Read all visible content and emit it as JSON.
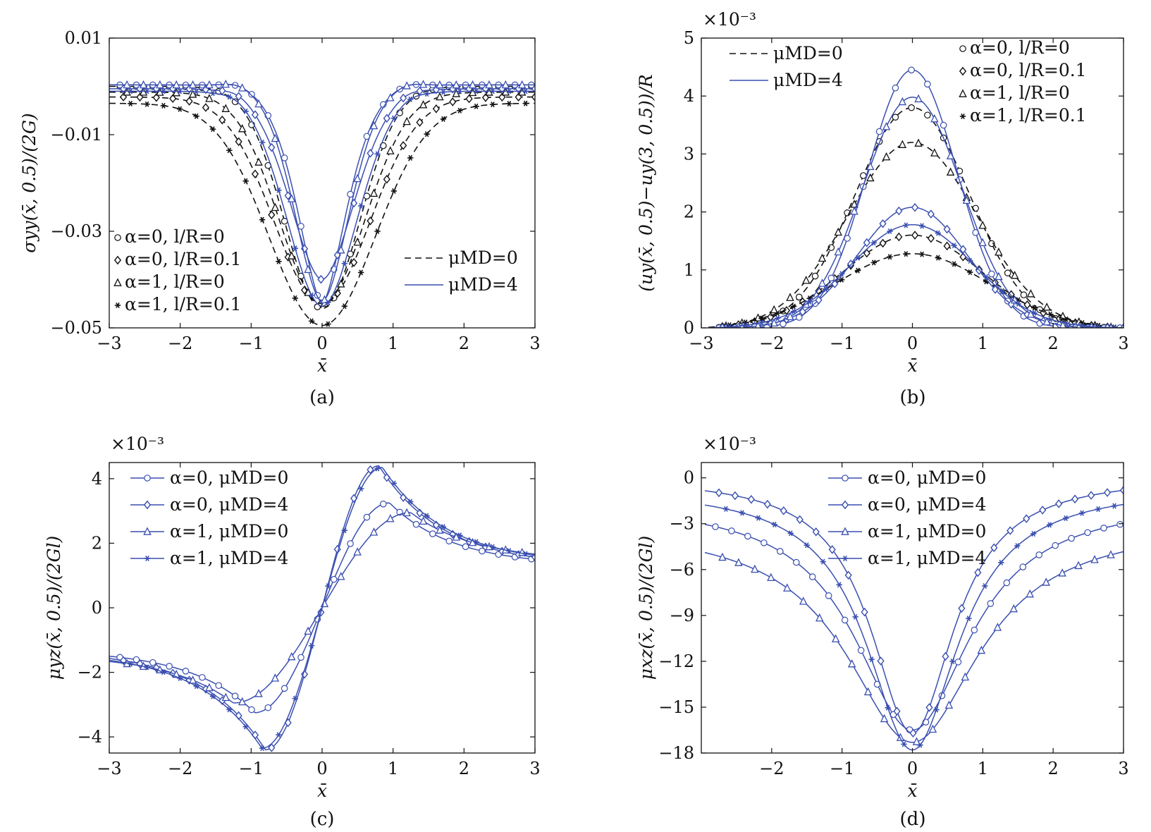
{
  "colors": {
    "blue": "#3a4fb0",
    "black": "#111111",
    "axis": "#111111"
  },
  "chart_data": [
    {
      "id": "a",
      "type": "line",
      "caption": "(a)",
      "xlabel": "x̄",
      "ylabel": "σyy(x̄, 0.5)/(2G)",
      "xlim": [
        -3,
        3
      ],
      "ylim": [
        -0.05,
        0.01
      ],
      "xticks": [
        -3,
        -2,
        -1,
        0,
        1,
        2,
        3
      ],
      "yticks": [
        -0.05,
        -0.03,
        -0.01,
        0.01
      ],
      "ytick_labels": [
        "−0.05",
        "−0.03",
        "−0.01",
        "0.01"
      ],
      "multiplier": "",
      "legend_markers": [
        {
          "marker": "circle",
          "label": "α=0, l/R=0"
        },
        {
          "marker": "diamond",
          "label": "α=0, l/R=0.1"
        },
        {
          "marker": "triangle",
          "label": "α=1, l/R=0"
        },
        {
          "marker": "star",
          "label": "α=1, l/R=0.1"
        }
      ],
      "legend_lines": [
        {
          "style": "dashed",
          "label": "μMD=0"
        },
        {
          "style": "solid",
          "label": "μMD=4"
        }
      ],
      "series": [
        {
          "color": "black",
          "style": "dashed",
          "marker": "circle",
          "peak": -0.046,
          "base": 0.0,
          "width": 0.75,
          "flat": 0,
          "p": 2.0
        },
        {
          "color": "black",
          "style": "dashed",
          "marker": "diamond",
          "peak": -0.045,
          "base": -0.0022,
          "width": 0.95,
          "flat": 0,
          "p": 2.0
        },
        {
          "color": "black",
          "style": "dashed",
          "marker": "triangle",
          "peak": -0.045,
          "base": -0.0012,
          "width": 0.85,
          "flat": 0,
          "p": 2.0
        },
        {
          "color": "black",
          "style": "dashed",
          "marker": "star",
          "peak": -0.0495,
          "base": -0.0035,
          "width": 1.05,
          "flat": 0,
          "p": 2.0
        },
        {
          "color": "blue",
          "style": "solid",
          "marker": "circle",
          "peak": -0.045,
          "base": 0.0003,
          "width": 0.5,
          "flat": 0.6,
          "p": 1.6
        },
        {
          "color": "blue",
          "style": "solid",
          "marker": "diamond",
          "peak": -0.04,
          "base": -0.0005,
          "width": 0.65,
          "flat": 0.35,
          "p": 1.8
        },
        {
          "color": "blue",
          "style": "solid",
          "marker": "triangle",
          "peak": -0.0445,
          "base": 0.0003,
          "width": 0.55,
          "flat": 0.3,
          "p": 1.8
        },
        {
          "color": "blue",
          "style": "solid",
          "marker": "star",
          "peak": -0.0455,
          "base": -0.001,
          "width": 0.7,
          "flat": 0.2,
          "p": 1.9
        }
      ]
    },
    {
      "id": "b",
      "type": "line",
      "caption": "(b)",
      "xlabel": "x̄",
      "ylabel": "(uy(x̄, 0.5)−uy(3, 0.5))/R",
      "xlim": [
        -3,
        3
      ],
      "ylim": [
        0,
        5
      ],
      "xticks": [
        -3,
        -2,
        -1,
        0,
        1,
        2,
        3
      ],
      "yticks": [
        0,
        1,
        2,
        3,
        4,
        5
      ],
      "ytick_labels": [
        "0",
        "1",
        "2",
        "3",
        "4",
        "5"
      ],
      "multiplier": "×10⁻³",
      "legend_markers": [
        {
          "marker": "circle",
          "label": "α=0, l/R=0"
        },
        {
          "marker": "diamond",
          "label": "α=0, l/R=0.1"
        },
        {
          "marker": "triangle",
          "label": "α=1, l/R=0"
        },
        {
          "marker": "star",
          "label": "α=1, l/R=0.1"
        }
      ],
      "legend_lines": [
        {
          "style": "dashed",
          "label": "μMD=0"
        },
        {
          "style": "solid",
          "label": "μMD=4"
        }
      ],
      "series": [
        {
          "color": "black",
          "style": "dashed",
          "marker": "circle",
          "peak": 3.8,
          "width": 1.15
        },
        {
          "color": "black",
          "style": "dashed",
          "marker": "diamond",
          "peak": 1.6,
          "width": 1.4
        },
        {
          "color": "black",
          "style": "dashed",
          "marker": "triangle",
          "peak": 3.2,
          "width": 1.3
        },
        {
          "color": "black",
          "style": "dashed",
          "marker": "star",
          "peak": 1.28,
          "width": 1.55
        },
        {
          "color": "blue",
          "style": "solid",
          "marker": "circle",
          "peak": 4.45,
          "width": 0.9
        },
        {
          "color": "blue",
          "style": "solid",
          "marker": "diamond",
          "peak": 2.08,
          "width": 1.1
        },
        {
          "color": "blue",
          "style": "solid",
          "marker": "triangle",
          "peak": 3.98,
          "width": 1.0
        },
        {
          "color": "blue",
          "style": "solid",
          "marker": "star",
          "peak": 1.78,
          "width": 1.25
        }
      ]
    },
    {
      "id": "c",
      "type": "line",
      "caption": "(c)",
      "xlabel": "x̄",
      "ylabel": "μyz(x̄, 0.5)/(2Gl)",
      "xlim": [
        -3,
        3
      ],
      "ylim": [
        -4.5,
        4.5
      ],
      "xticks": [
        -3,
        -2,
        -1,
        0,
        1,
        2,
        3
      ],
      "yticks": [
        -4,
        -2,
        0,
        2,
        4
      ],
      "ytick_labels": [
        "−4",
        "−2",
        "0",
        "2",
        "4"
      ],
      "multiplier": "×10⁻³",
      "legend_series": [
        {
          "marker": "circle",
          "label": "α=0, μMD=0"
        },
        {
          "marker": "diamond",
          "label": "α=0, μMD=4"
        },
        {
          "marker": "triangle",
          "label": "α=1, μMD=0"
        },
        {
          "marker": "star",
          "label": "α=1, μMD=4"
        }
      ],
      "series": [
        {
          "color": "blue",
          "style": "solid",
          "marker": "circle",
          "peak": 3.25,
          "xpk": 0.95,
          "tail": 1.3
        },
        {
          "color": "blue",
          "style": "solid",
          "marker": "diamond",
          "peak": 4.4,
          "xpk": 0.8,
          "tail": 1.3
        },
        {
          "color": "blue",
          "style": "solid",
          "marker": "triangle",
          "peak": 2.95,
          "xpk": 1.25,
          "tail": 1.45
        },
        {
          "color": "blue",
          "style": "solid",
          "marker": "star",
          "peak": 4.35,
          "xpk": 0.85,
          "tail": 1.35
        }
      ]
    },
    {
      "id": "d",
      "type": "line",
      "caption": "(d)",
      "xlabel": "x̄",
      "ylabel": "μxz(x̄, 0.5)/(2Gl)",
      "xlim": [
        -3,
        3
      ],
      "ylim": [
        -18,
        1
      ],
      "xticks": [
        -2,
        -1,
        0,
        1,
        2,
        3
      ],
      "yticks": [
        -18,
        -15,
        -12,
        -9,
        -6,
        -3,
        0
      ],
      "ytick_labels": [
        "−18",
        "−15",
        "−12",
        "−9",
        "−6",
        "−3",
        "0"
      ],
      "multiplier": "×10⁻³",
      "legend_series": [
        {
          "marker": "circle",
          "label": "α=0, μMD=0"
        },
        {
          "marker": "diamond",
          "label": "α=0, μMD=4"
        },
        {
          "marker": "triangle",
          "label": "α=1, μMD=0"
        },
        {
          "marker": "star",
          "label": "α=1, μMD=4"
        }
      ],
      "series": [
        {
          "color": "blue",
          "style": "solid",
          "marker": "circle",
          "peak": -16.5,
          "base": -1.5,
          "width": 1.0
        },
        {
          "color": "blue",
          "style": "solid",
          "marker": "diamond",
          "peak": -16.7,
          "base": 0.1,
          "width": 0.72
        },
        {
          "color": "blue",
          "style": "solid",
          "marker": "triangle",
          "peak": -17.3,
          "base": -3.0,
          "width": 1.15
        },
        {
          "color": "blue",
          "style": "solid",
          "marker": "star",
          "peak": -17.8,
          "base": -0.6,
          "width": 0.8
        }
      ]
    }
  ]
}
